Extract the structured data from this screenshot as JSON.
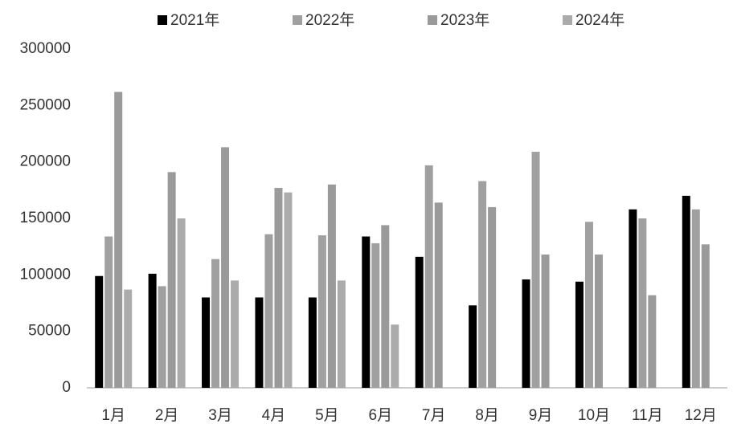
{
  "chart_data": {
    "type": "bar",
    "categories": [
      "1月",
      "2月",
      "3月",
      "4月",
      "5月",
      "6月",
      "7月",
      "8月",
      "9月",
      "10月",
      "11月",
      "12月"
    ],
    "series": [
      {
        "name": "2021年",
        "color": "#000000",
        "values": [
          99000,
          101000,
          80000,
          80000,
          80000,
          134000,
          116000,
          73000,
          96000,
          94000,
          158000,
          170000
        ]
      },
      {
        "name": "2022年",
        "color": "#a0a0a0",
        "values": [
          134000,
          90000,
          114000,
          136000,
          135000,
          128000,
          197000,
          183000,
          209000,
          147000,
          150000,
          158000
        ]
      },
      {
        "name": "2023年",
        "color": "#9a9a9a",
        "values": [
          262000,
          191000,
          213000,
          177000,
          180000,
          144000,
          164000,
          160000,
          118000,
          118000,
          82000,
          127000
        ]
      },
      {
        "name": "2024年",
        "color": "#ababab",
        "values": [
          87000,
          150000,
          95000,
          173000,
          95000,
          56000,
          null,
          null,
          null,
          null,
          null,
          null
        ]
      }
    ],
    "ylim": [
      0,
      300000
    ],
    "yticks": [
      0,
      50000,
      100000,
      150000,
      200000,
      250000,
      300000
    ],
    "grid": false,
    "legend": "top"
  }
}
